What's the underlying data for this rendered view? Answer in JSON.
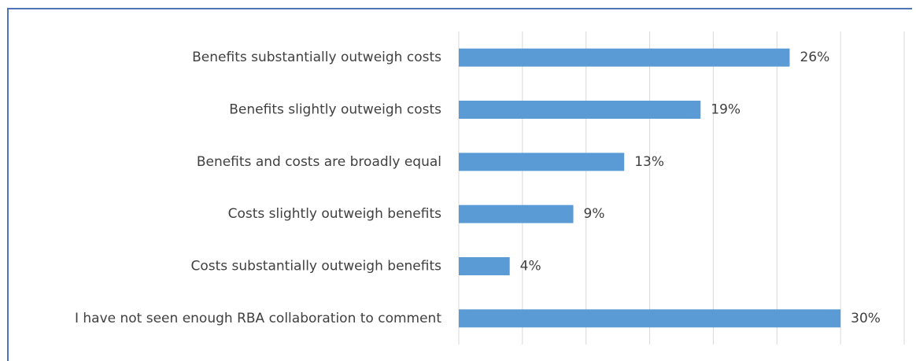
{
  "chart_data": {
    "type": "bar",
    "orientation": "horizontal",
    "categories": [
      "Benefits substantially outweigh costs",
      "Benefits slightly outweigh costs",
      "Benefits and costs are broadly equal",
      "Costs slightly outweigh benefits",
      "Costs substantially outweigh benefits",
      "I have not seen enough RBA collaboration to comment"
    ],
    "values": [
      26,
      19,
      13,
      9,
      4,
      30
    ],
    "data_labels": [
      "26%",
      "19%",
      "13%",
      "9%",
      "4%",
      "30%"
    ],
    "xlim": [
      0,
      35
    ],
    "grid": true,
    "colors": {
      "bar": "#5b9bd5",
      "grid": "#d9d9d9",
      "text": "#404040",
      "border": "#4f73b5"
    }
  }
}
